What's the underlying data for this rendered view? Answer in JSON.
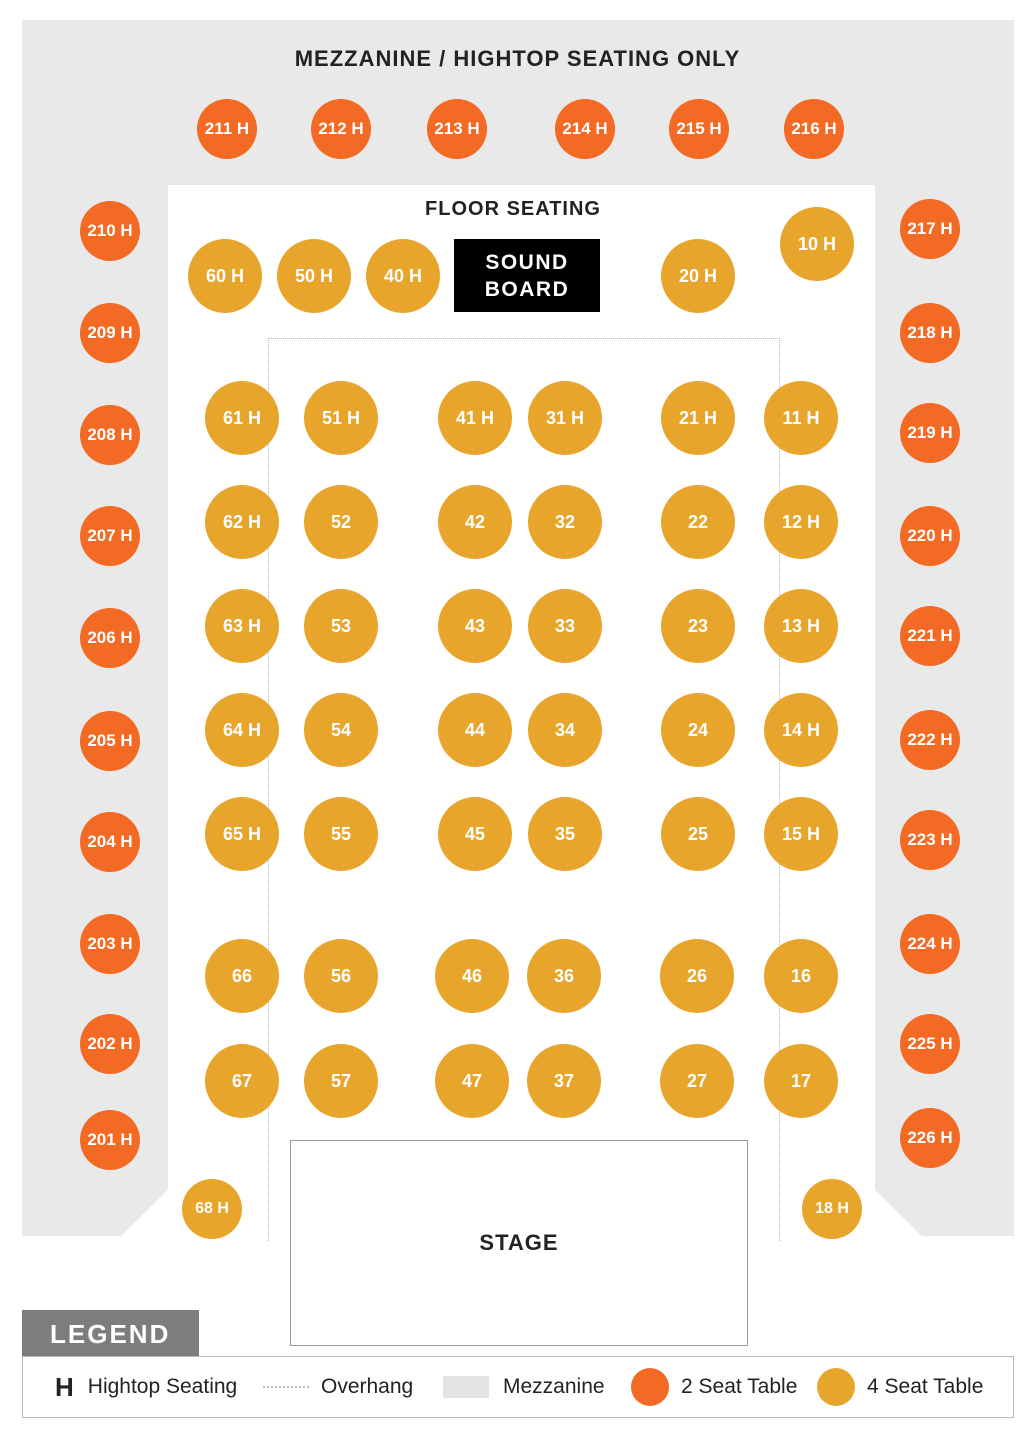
{
  "headings": {
    "mezzanine": "MEZZANINE / HIGHTOP SEATING ONLY",
    "floor": "FLOOR SEATING",
    "sound_board_line1": "SOUND",
    "sound_board_line2": "BOARD",
    "stage": "STAGE"
  },
  "colors": {
    "two_seat": "#f26a23",
    "four_seat": "#e8a52c",
    "mezzanine": "#e9e9e9",
    "legend_tab": "#7d7d7d"
  },
  "mezzanine_tables": [
    "211 H",
    "212 H",
    "213 H",
    "214 H",
    "215 H",
    "216 H",
    "210 H",
    "209 H",
    "208 H",
    "207 H",
    "206 H",
    "205 H",
    "204 H",
    "203 H",
    "202 H",
    "201 H",
    "217 H",
    "218 H",
    "219 H",
    "220 H",
    "221 H",
    "222 H",
    "223 H",
    "224 H",
    "225 H",
    "226 H"
  ],
  "floor_tables": [
    "60 H",
    "50 H",
    "40 H",
    "20 H",
    "10 H",
    "61 H",
    "51 H",
    "41 H",
    "31 H",
    "21 H",
    "11 H",
    "62 H",
    "52",
    "42",
    "32",
    "22",
    "12 H",
    "63 H",
    "53",
    "43",
    "33",
    "23",
    "13 H",
    "64 H",
    "54",
    "44",
    "34",
    "24",
    "14 H",
    "65 H",
    "55",
    "45",
    "35",
    "25",
    "15 H",
    "66",
    "56",
    "46",
    "36",
    "26",
    "16",
    "67",
    "57",
    "47",
    "37",
    "27",
    "17",
    "68 H",
    "18 H"
  ],
  "legend": {
    "title": "LEGEND",
    "hightop_symbol": "H",
    "hightop_label": "Hightop Seating",
    "overhang_label": "Overhang",
    "mezzanine_label": "Mezzanine",
    "two_seat_label": "2 Seat Table",
    "four_seat_label": "4 Seat Table"
  }
}
